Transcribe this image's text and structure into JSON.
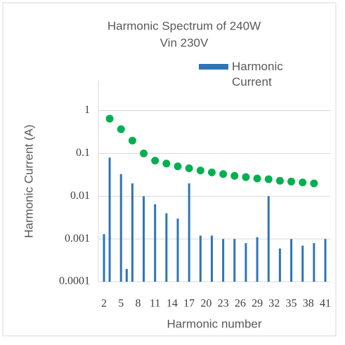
{
  "chart_data": {
    "type": "bar",
    "title": "Harmonic Spectrum  of 240W",
    "subtitle": "Vin 230V",
    "x_label": "Harmonic number",
    "y_label": "Harmonic Current  (A)",
    "categories": [
      "2",
      null,
      null,
      "5",
      null,
      null,
      "8",
      null,
      null,
      "11",
      null,
      null,
      "14",
      null,
      null,
      "17",
      null,
      null,
      "20",
      null,
      null,
      "23",
      null,
      null,
      "26",
      null,
      null,
      "29",
      null,
      null,
      "32",
      null,
      null,
      "35",
      null,
      null,
      "38",
      null,
      null,
      "41"
    ],
    "series": [
      {
        "name": "Harmonic Current",
        "type": "bar",
        "color": "#2e75b6",
        "values": [
          0.0013,
          0.08,
          null,
          0.033,
          0.0002,
          0.02,
          null,
          0.01,
          null,
          0.0065,
          null,
          0.004,
          null,
          0.003,
          null,
          0.02,
          null,
          0.0012,
          null,
          0.0012,
          null,
          0.001,
          null,
          0.001,
          null,
          0.0008,
          null,
          0.0011,
          null,
          0.01,
          null,
          0.0006,
          null,
          0.001,
          null,
          0.0007,
          null,
          0.0008,
          null,
          0.001
        ]
      },
      {
        "type": "scatter",
        "color": "#00b050",
        "values": [
          null,
          0.65,
          null,
          0.37,
          null,
          0.2,
          null,
          0.1,
          null,
          0.068,
          null,
          0.058,
          null,
          0.05,
          null,
          0.045,
          null,
          0.04,
          null,
          0.036,
          null,
          0.033,
          null,
          0.03,
          null,
          0.028,
          null,
          0.026,
          null,
          0.025,
          null,
          0.023,
          null,
          0.022,
          null,
          0.021,
          null,
          0.02,
          null,
          null
        ]
      }
    ],
    "ylim": [
      0.0001,
      5
    ],
    "yticks": [
      0.0001,
      0.001,
      0.01,
      0.1,
      1
    ],
    "log_scale": true,
    "grid": true,
    "legend": "top-right"
  }
}
